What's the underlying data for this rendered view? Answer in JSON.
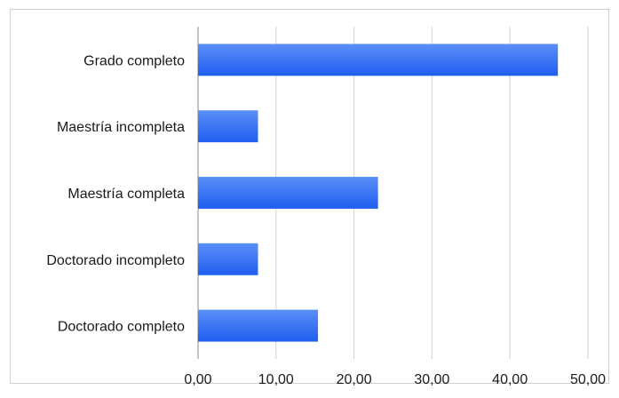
{
  "chart_data": {
    "type": "bar",
    "orientation": "horizontal",
    "categories": [
      "Grado completo",
      "Maestría incompleta",
      "Maestría completa",
      "Doctorado incompleto",
      "Doctorado completo"
    ],
    "values": [
      46.15,
      7.69,
      23.08,
      7.69,
      15.38
    ],
    "xlim": [
      0,
      50
    ],
    "x_ticks": [
      "0,00",
      "10,00",
      "20,00",
      "30,00",
      "40,00",
      "50,00"
    ],
    "grid": "vertical",
    "legend": "none",
    "colors": {
      "bar_top": "#5b8ef7",
      "bar_bottom": "#1f5ff0",
      "grid": "#cfcfcf",
      "axis": "#8a8a8a",
      "border": "#d0d0d0"
    }
  }
}
